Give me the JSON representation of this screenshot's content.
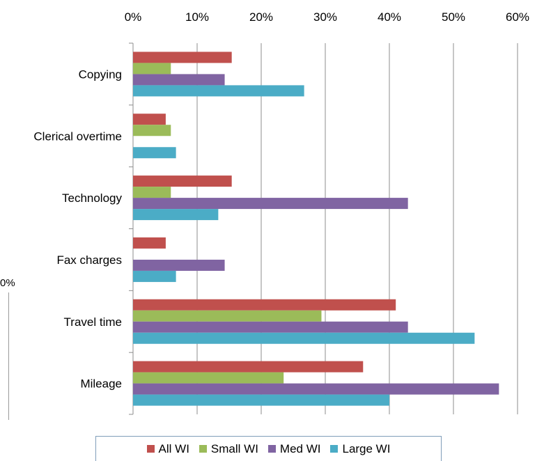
{
  "chart_data": {
    "type": "bar",
    "orientation": "horizontal",
    "categories": [
      "Copying",
      "Clerical overtime",
      "Technology",
      "Fax charges",
      "Travel time",
      "Mileage"
    ],
    "series": [
      {
        "name": "All WI",
        "color": "#c0504d",
        "values": [
          15.4,
          5.1,
          15.4,
          5.1,
          41.0,
          35.9
        ]
      },
      {
        "name": "Small WI",
        "color": "#9bbb59",
        "values": [
          5.9,
          5.9,
          5.9,
          0,
          29.4,
          23.5
        ]
      },
      {
        "name": "Med WI",
        "color": "#8064a2",
        "values": [
          14.3,
          0,
          42.9,
          14.3,
          42.9,
          57.1
        ]
      },
      {
        "name": "Large WI",
        "color": "#4bacc6",
        "values": [
          26.7,
          6.7,
          13.3,
          6.7,
          53.3,
          40.0
        ]
      }
    ],
    "xlim": [
      0,
      60
    ],
    "xticks": [
      "0%",
      "10%",
      "20%",
      "30%",
      "40%",
      "50%",
      "60%"
    ],
    "xaxis_position": "top",
    "grid": true,
    "legend_position": "bottom"
  },
  "background_fragments": {
    "left_label": "0%"
  }
}
